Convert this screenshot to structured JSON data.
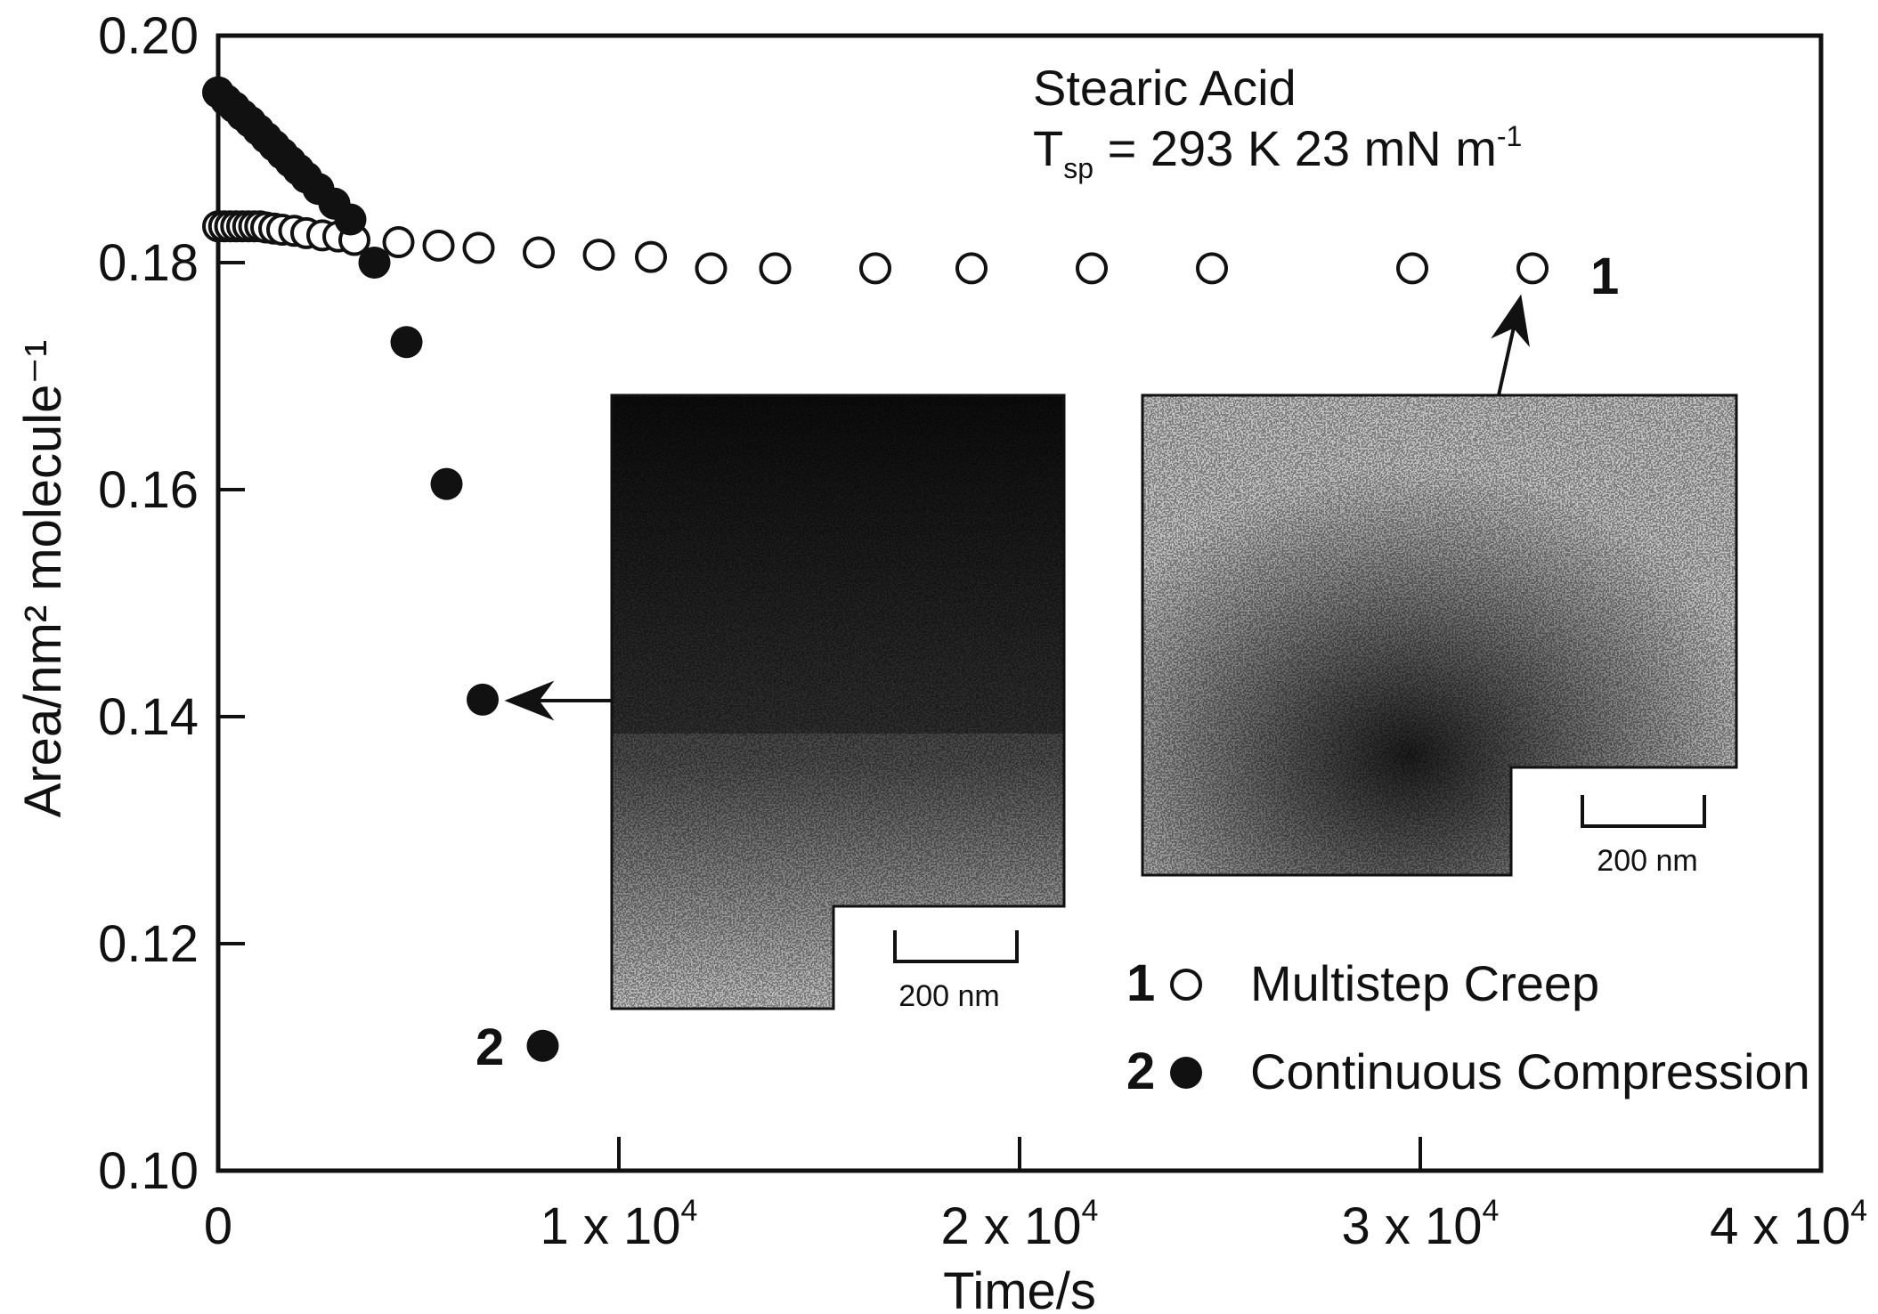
{
  "chart_data": {
    "type": "scatter",
    "xlabel": "Time/s",
    "ylabel": "Area/nm² molecule⁻¹",
    "xlim": [
      0,
      40000
    ],
    "ylim": [
      0.1,
      0.2
    ],
    "x_ticks": [
      0,
      10000,
      20000,
      30000,
      40000
    ],
    "x_tick_labels": [
      "0",
      "1 x 10",
      "2 x 10",
      "3 x 10",
      "4 x 10"
    ],
    "x_tick_exponent": "4",
    "y_ticks": [
      0.1,
      0.12,
      0.14,
      0.16,
      0.18,
      0.2
    ],
    "y_tick_labels": [
      "0.10",
      "0.12",
      "0.14",
      "0.16",
      "0.18",
      "0.20"
    ],
    "annotation": {
      "line1": "Stearic Acid",
      "line2_main": "T",
      "line2_sub": "sp",
      "line2_rest": " = 293 K 23 mN m",
      "line2_sup": "-1"
    },
    "series": [
      {
        "name": "Multistep Creep",
        "number": "1",
        "marker": "open-circle",
        "x": [
          0,
          150,
          300,
          450,
          600,
          750,
          900,
          1050,
          1200,
          1400,
          1600,
          1900,
          2200,
          2600,
          3000,
          3400,
          4500,
          5500,
          6500,
          8000,
          9500,
          10800,
          12300,
          13900,
          16400,
          18800,
          21800,
          24800,
          29800,
          32800
        ],
        "y": [
          0.1832,
          0.1832,
          0.1832,
          0.1832,
          0.1832,
          0.1832,
          0.1832,
          0.1832,
          0.1831,
          0.183,
          0.1829,
          0.1828,
          0.1826,
          0.1824,
          0.1823,
          0.182,
          0.1818,
          0.1815,
          0.1813,
          0.1809,
          0.1807,
          0.1805,
          0.1795,
          0.1795,
          0.1795,
          0.1795,
          0.1795,
          0.1795,
          0.1795,
          0.1795
        ]
      },
      {
        "name": "Continuous Compression",
        "number": "2",
        "marker": "filled-circle",
        "x": [
          0,
          200,
          400,
          600,
          800,
          1000,
          1200,
          1400,
          1600,
          1800,
          2000,
          2200,
          2500,
          2900,
          3300,
          3900,
          4700,
          5700,
          6600,
          8100
        ],
        "y": [
          0.195,
          0.1943,
          0.1937,
          0.193,
          0.1924,
          0.1917,
          0.191,
          0.1903,
          0.1896,
          0.1889,
          0.1882,
          0.1875,
          0.1865,
          0.1852,
          0.1838,
          0.18,
          0.173,
          0.1605,
          0.1415,
          0.111
        ]
      }
    ],
    "point_labels": [
      {
        "text": "1",
        "series": "Multistep Creep"
      },
      {
        "text": "2",
        "series": "Continuous Compression"
      }
    ],
    "legend": {
      "placement": "bottom-right",
      "entries": [
        {
          "number": "1",
          "label": "Multistep Creep",
          "marker": "open-circle"
        },
        {
          "number": "2",
          "label": "Continuous Compression",
          "marker": "filled-circle"
        }
      ]
    },
    "insets": [
      {
        "name": "micrograph-continuous-compression",
        "scale_bar": "200 nm",
        "points_to_series": "Continuous Compression"
      },
      {
        "name": "micrograph-multistep-creep",
        "scale_bar": "200 nm",
        "points_to_series": "Multistep Creep"
      }
    ],
    "grid": false
  },
  "colors": {
    "ink": "#111111",
    "paper": "#ffffff",
    "image_dark": "#1c1c1c",
    "image_light": "#d8d8d8"
  }
}
